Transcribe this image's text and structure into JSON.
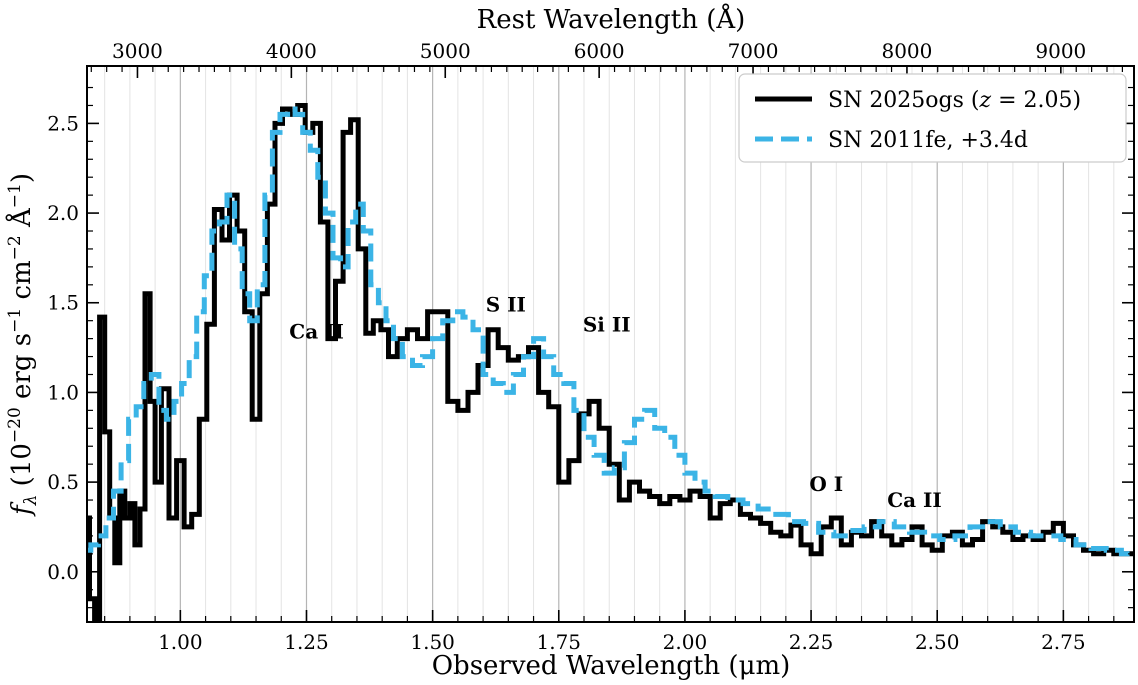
{
  "chart_data": {
    "type": "line",
    "xlabel": "Observed Wavelength (μm)",
    "top_xlabel": "Rest Wavelength (Å)",
    "ylabel": "f_λ (10^−20 erg s^−1 cm^−2 Å^−1)",
    "ylabel_parts": {
      "f": "f",
      "sub": "λ",
      "a": " (10",
      "e1": "−20",
      "b": " erg s",
      "e2": "−1",
      "c": " cm",
      "e3": "−2",
      "d": " Å",
      "e4": "−1",
      "e": ")"
    },
    "xlim": [
      0.815,
      2.89
    ],
    "ylim": [
      -0.28,
      2.82
    ],
    "redshift": 2.05,
    "x_ticks": [
      1.0,
      1.25,
      1.5,
      1.75,
      2.0,
      2.25,
      2.5,
      2.75
    ],
    "x_tick_labels": [
      "1.00",
      "1.25",
      "1.50",
      "1.75",
      "2.00",
      "2.25",
      "2.50",
      "2.75"
    ],
    "y_ticks": [
      0.0,
      0.5,
      1.0,
      1.5,
      2.0,
      2.5
    ],
    "y_tick_labels": [
      "0.0",
      "0.5",
      "1.0",
      "1.5",
      "2.0",
      "2.5"
    ],
    "top_ticks": [
      3000,
      4000,
      5000,
      6000,
      7000,
      8000,
      9000
    ],
    "top_tick_labels": [
      "3000",
      "4000",
      "5000",
      "6000",
      "7000",
      "8000",
      "9000"
    ],
    "grid": true,
    "legend_position": "top-right",
    "annotations": [
      {
        "text": "Ca II",
        "x": 1.27,
        "y": 1.3
      },
      {
        "text": "S II",
        "x": 1.645,
        "y": 1.45
      },
      {
        "text": "Si II",
        "x": 1.845,
        "y": 1.34
      },
      {
        "text": "O I",
        "x": 2.28,
        "y": 0.45
      },
      {
        "text": "Ca II",
        "x": 2.455,
        "y": 0.36
      }
    ],
    "series": [
      {
        "name": "SN 2025ogs (z = 2.05)",
        "legend_main": "SN 2025ogs (",
        "legend_z": "z",
        "legend_eq": " = 2.05)",
        "color": "#000000",
        "style": "steps-solid",
        "x": [
          0.815,
          0.825,
          0.835,
          0.845,
          0.855,
          0.865,
          0.875,
          0.885,
          0.895,
          0.905,
          0.915,
          0.925,
          0.935,
          0.945,
          0.955,
          0.97,
          0.985,
          1.0,
          1.015,
          1.03,
          1.045,
          1.06,
          1.075,
          1.09,
          1.105,
          1.12,
          1.135,
          1.15,
          1.165,
          1.18,
          1.195,
          1.21,
          1.225,
          1.24,
          1.255,
          1.27,
          1.285,
          1.3,
          1.315,
          1.33,
          1.345,
          1.36,
          1.375,
          1.39,
          1.405,
          1.42,
          1.44,
          1.46,
          1.48,
          1.5,
          1.52,
          1.54,
          1.56,
          1.58,
          1.6,
          1.62,
          1.64,
          1.66,
          1.68,
          1.7,
          1.72,
          1.74,
          1.76,
          1.78,
          1.8,
          1.82,
          1.84,
          1.86,
          1.88,
          1.9,
          1.92,
          1.94,
          1.96,
          1.98,
          2.0,
          2.02,
          2.04,
          2.06,
          2.08,
          2.1,
          2.12,
          2.14,
          2.16,
          2.18,
          2.2,
          2.22,
          2.24,
          2.26,
          2.28,
          2.3,
          2.32,
          2.34,
          2.36,
          2.38,
          2.4,
          2.42,
          2.44,
          2.46,
          2.48,
          2.5,
          2.52,
          2.54,
          2.56,
          2.58,
          2.6,
          2.62,
          2.64,
          2.66,
          2.68,
          2.7,
          2.72,
          2.74,
          2.76,
          2.78,
          2.8,
          2.82,
          2.84,
          2.86,
          2.88
        ],
        "values": [
          0.3,
          -0.15,
          -0.3,
          1.42,
          0.78,
          0.3,
          0.05,
          0.45,
          0.3,
          0.38,
          0.15,
          0.35,
          1.55,
          0.95,
          0.5,
          1.02,
          0.3,
          0.62,
          0.25,
          0.32,
          0.85,
          1.38,
          2.02,
          1.85,
          2.1,
          1.9,
          1.45,
          0.85,
          1.55,
          2.05,
          2.5,
          2.58,
          2.55,
          2.6,
          2.45,
          2.5,
          1.95,
          1.3,
          1.62,
          2.45,
          2.52,
          1.8,
          1.33,
          1.4,
          1.35,
          1.2,
          1.3,
          1.35,
          1.3,
          1.45,
          1.45,
          0.95,
          0.9,
          1.0,
          1.15,
          1.35,
          1.25,
          1.18,
          1.2,
          1.25,
          1.0,
          0.92,
          0.5,
          0.62,
          0.88,
          0.95,
          0.8,
          0.6,
          0.4,
          0.5,
          0.45,
          0.42,
          0.38,
          0.42,
          0.4,
          0.45,
          0.42,
          0.3,
          0.38,
          0.4,
          0.32,
          0.3,
          0.27,
          0.22,
          0.2,
          0.26,
          0.15,
          0.1,
          0.25,
          0.3,
          0.15,
          0.22,
          0.2,
          0.28,
          0.2,
          0.15,
          0.18,
          0.25,
          0.15,
          0.12,
          0.2,
          0.22,
          0.15,
          0.18,
          0.28,
          0.25,
          0.22,
          0.18,
          0.2,
          0.18,
          0.22,
          0.27,
          0.2,
          0.15,
          0.12,
          0.1,
          0.12,
          0.1,
          0.1
        ],
        "legend_dx": 0
      },
      {
        "name": "SN 2011fe, +3.4d",
        "legend_main": "SN 2011fe, +3.4d",
        "color": "#3bb4e6",
        "style": "steps-dashed",
        "x": [
          0.815,
          0.83,
          0.845,
          0.86,
          0.875,
          0.89,
          0.905,
          0.92,
          0.935,
          0.95,
          0.965,
          0.98,
          0.995,
          1.01,
          1.025,
          1.04,
          1.055,
          1.07,
          1.085,
          1.1,
          1.115,
          1.13,
          1.145,
          1.16,
          1.175,
          1.19,
          1.205,
          1.22,
          1.235,
          1.25,
          1.265,
          1.28,
          1.295,
          1.31,
          1.325,
          1.34,
          1.355,
          1.37,
          1.385,
          1.4,
          1.415,
          1.43,
          1.45,
          1.47,
          1.49,
          1.51,
          1.53,
          1.55,
          1.57,
          1.59,
          1.61,
          1.63,
          1.65,
          1.67,
          1.69,
          1.71,
          1.73,
          1.75,
          1.77,
          1.79,
          1.81,
          1.83,
          1.85,
          1.87,
          1.89,
          1.91,
          1.93,
          1.95,
          1.97,
          1.99,
          2.01,
          2.03,
          2.05,
          2.07,
          2.1,
          2.13,
          2.16,
          2.19,
          2.22,
          2.25,
          2.28,
          2.31,
          2.34,
          2.37,
          2.4,
          2.43,
          2.46,
          2.49,
          2.52,
          2.55,
          2.58,
          2.61,
          2.64,
          2.67,
          2.7,
          2.73,
          2.76,
          2.79,
          2.82,
          2.85,
          2.88
        ],
        "values": [
          0.12,
          0.15,
          0.2,
          0.3,
          0.45,
          0.62,
          0.85,
          0.92,
          1.05,
          1.1,
          0.9,
          0.85,
          0.95,
          1.05,
          1.2,
          1.45,
          1.65,
          1.9,
          1.95,
          2.1,
          1.8,
          1.55,
          1.4,
          1.6,
          2.1,
          2.45,
          2.55,
          2.58,
          2.55,
          2.45,
          2.35,
          2.2,
          2.0,
          1.75,
          1.7,
          1.95,
          2.05,
          1.9,
          1.6,
          1.5,
          1.4,
          1.3,
          1.2,
          1.15,
          1.2,
          1.3,
          1.4,
          1.45,
          1.42,
          1.35,
          1.1,
          1.05,
          1.0,
          1.1,
          1.2,
          1.3,
          1.2,
          1.1,
          1.05,
          0.9,
          0.75,
          0.65,
          0.55,
          0.58,
          0.72,
          0.85,
          0.9,
          0.8,
          0.75,
          0.65,
          0.55,
          0.5,
          0.45,
          0.42,
          0.4,
          0.38,
          0.35,
          0.32,
          0.28,
          0.27,
          0.22,
          0.2,
          0.23,
          0.25,
          0.28,
          0.25,
          0.22,
          0.2,
          0.18,
          0.2,
          0.25,
          0.28,
          0.25,
          0.22,
          0.2,
          0.2,
          0.18,
          0.15,
          0.13,
          0.12,
          0.1
        ],
        "legend_dx": 0
      }
    ]
  }
}
